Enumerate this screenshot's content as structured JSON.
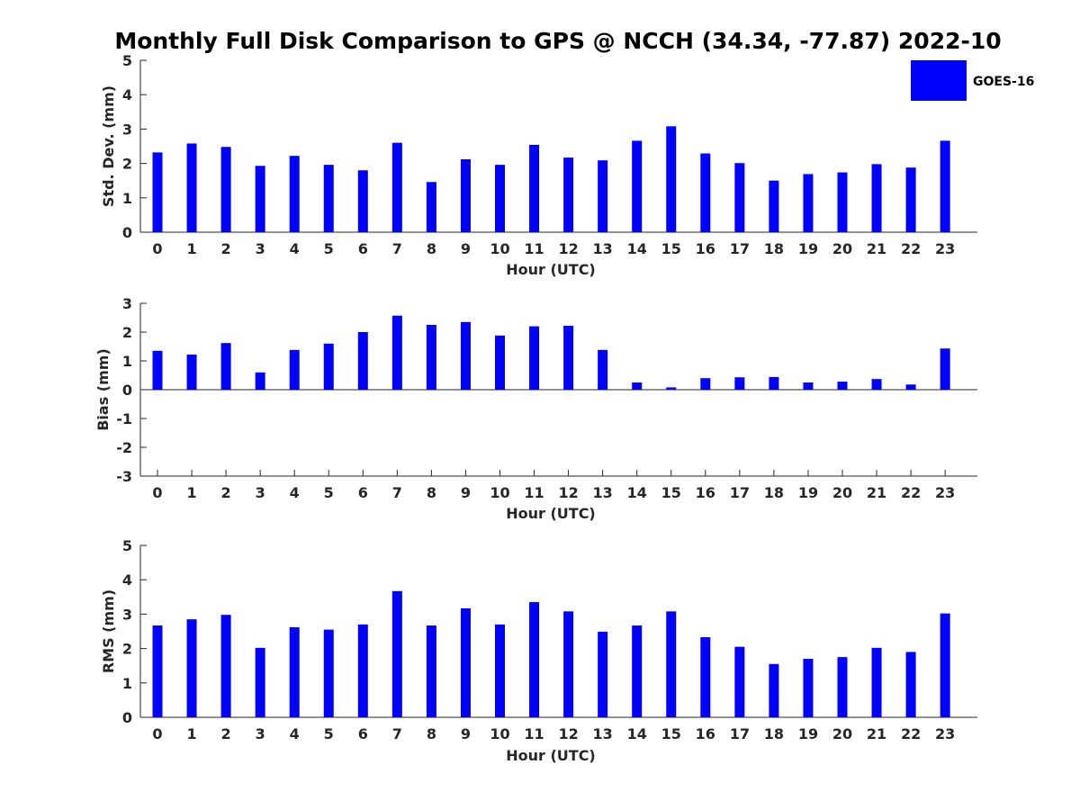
{
  "chart_title": "Monthly Full Disk Comparison to GPS @ NCCH (34.34, -77.87) 2022-10",
  "chart_data": [
    {
      "type": "bar",
      "ylabel": "Std. Dev. (mm)",
      "xlabel": "Hour (UTC)",
      "ylim": [
        0,
        5
      ],
      "yticks": [
        "0",
        "1",
        "2",
        "3",
        "4",
        "5"
      ],
      "categories": [
        "0",
        "1",
        "2",
        "3",
        "4",
        "5",
        "6",
        "7",
        "8",
        "9",
        "10",
        "11",
        "12",
        "13",
        "14",
        "15",
        "16",
        "17",
        "18",
        "19",
        "20",
        "21",
        "22",
        "23"
      ],
      "series": [
        {
          "name": "GOES-16",
          "color": "#0000ff",
          "values": [
            2.32,
            2.58,
            2.48,
            1.93,
            2.22,
            1.96,
            1.8,
            2.6,
            1.46,
            2.12,
            1.96,
            2.54,
            2.17,
            2.09,
            2.66,
            3.08,
            2.29,
            2.01,
            1.5,
            1.69,
            1.74,
            1.98,
            1.88,
            2.66
          ]
        }
      ]
    },
    {
      "type": "bar",
      "ylabel": "Bias (mm)",
      "xlabel": "Hour (UTC)",
      "ylim": [
        -3,
        3
      ],
      "yticks": [
        "-3",
        "-2",
        "-1",
        "0",
        "1",
        "2",
        "3"
      ],
      "categories": [
        "0",
        "1",
        "2",
        "3",
        "4",
        "5",
        "6",
        "7",
        "8",
        "9",
        "10",
        "11",
        "12",
        "13",
        "14",
        "15",
        "16",
        "17",
        "18",
        "19",
        "20",
        "21",
        "22",
        "23"
      ],
      "series": [
        {
          "name": "GOES-16",
          "color": "#0000ff",
          "values": [
            1.35,
            1.22,
            1.62,
            0.6,
            1.38,
            1.6,
            2.0,
            2.57,
            2.25,
            2.35,
            1.88,
            2.2,
            2.22,
            1.38,
            0.25,
            0.08,
            0.4,
            0.43,
            0.44,
            0.25,
            0.28,
            0.37,
            0.18,
            1.43
          ]
        }
      ]
    },
    {
      "type": "bar",
      "ylabel": "RMS (mm)",
      "xlabel": "Hour (UTC)",
      "ylim": [
        0,
        5
      ],
      "yticks": [
        "0",
        "1",
        "2",
        "3",
        "4",
        "5"
      ],
      "categories": [
        "0",
        "1",
        "2",
        "3",
        "4",
        "5",
        "6",
        "7",
        "8",
        "9",
        "10",
        "11",
        "12",
        "13",
        "14",
        "15",
        "16",
        "17",
        "18",
        "19",
        "20",
        "21",
        "22",
        "23"
      ],
      "series": [
        {
          "name": "GOES-16",
          "color": "#0000ff",
          "values": [
            2.67,
            2.85,
            2.98,
            2.02,
            2.62,
            2.55,
            2.7,
            3.67,
            2.67,
            3.17,
            2.7,
            3.35,
            3.08,
            2.49,
            2.67,
            3.08,
            2.33,
            2.05,
            1.55,
            1.7,
            1.75,
            2.02,
            1.9,
            3.02
          ]
        }
      ]
    }
  ],
  "legend": {
    "label": "GOES-16",
    "color": "#0000ff",
    "placement": "top-right"
  }
}
